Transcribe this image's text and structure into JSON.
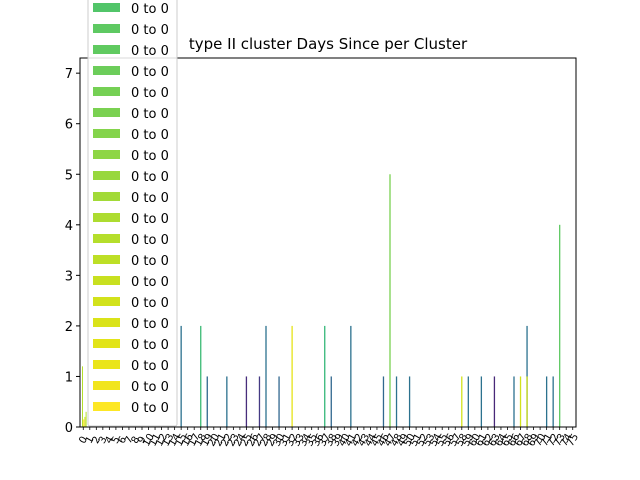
{
  "chart_data": {
    "type": "bar",
    "title": "type II cluster Days Since per Cluster",
    "xlabel": "",
    "ylabel": "",
    "ylim": [
      0,
      7.3
    ],
    "yticks": [
      0,
      1,
      2,
      3,
      4,
      5,
      6,
      7
    ],
    "categories": [
      "0",
      "1",
      "2",
      "3",
      "4",
      "5",
      "6",
      "7",
      "8",
      "9",
      "10",
      "11",
      "12",
      "13",
      "14",
      "15",
      "16",
      "17",
      "18",
      "19",
      "20",
      "21",
      "22",
      "23",
      "24",
      "25",
      "26",
      "27",
      "28",
      "29",
      "30",
      "31",
      "32",
      "33",
      "34",
      "35",
      "36",
      "37",
      "38",
      "39",
      "40",
      "41",
      "42",
      "43",
      "44",
      "45",
      "46",
      "47",
      "48",
      "49",
      "50",
      "51",
      "52",
      "53",
      "54",
      "55",
      "56",
      "57",
      "58",
      "59",
      "60",
      "61",
      "62",
      "63",
      "64",
      "65",
      "66",
      "67",
      "68",
      "69",
      "70",
      "71",
      "72",
      "73",
      "74",
      "75"
    ],
    "bars": [
      {
        "category": "15",
        "value": 2,
        "color": "#2c728e"
      },
      {
        "category": "18",
        "value": 2,
        "color": "#3bbb75"
      },
      {
        "category": "19",
        "value": 1,
        "color": "#31688e"
      },
      {
        "category": "22",
        "value": 1,
        "color": "#2c728e"
      },
      {
        "category": "25",
        "value": 1,
        "color": "#472d7b"
      },
      {
        "category": "27",
        "value": 1,
        "color": "#443a83"
      },
      {
        "category": "28",
        "value": 2,
        "color": "#2c728e"
      },
      {
        "category": "30",
        "value": 1,
        "color": "#31688e"
      },
      {
        "category": "32",
        "value": 2,
        "color": "#e5e419"
      },
      {
        "category": "37",
        "value": 2,
        "color": "#35b779"
      },
      {
        "category": "38",
        "value": 1,
        "color": "#31688e"
      },
      {
        "category": "41",
        "value": 2,
        "color": "#2c728e"
      },
      {
        "category": "46",
        "value": 1,
        "color": "#31688e"
      },
      {
        "category": "47",
        "value": 5,
        "color": "#7ad151"
      },
      {
        "category": "48",
        "value": 1,
        "color": "#2c728e"
      },
      {
        "category": "50",
        "value": 1,
        "color": "#2c728e"
      },
      {
        "category": "58",
        "value": 1,
        "color": "#d2e21b"
      },
      {
        "category": "59",
        "value": 1,
        "color": "#2c728e"
      },
      {
        "category": "61",
        "value": 1,
        "color": "#2c728e"
      },
      {
        "category": "63",
        "value": 1,
        "color": "#482878"
      },
      {
        "category": "66",
        "value": 1,
        "color": "#2c728e"
      },
      {
        "category": "67",
        "value": 1,
        "color": "#d2e21b"
      },
      {
        "category": "68",
        "value": 2,
        "color": "#2c728e"
      },
      {
        "category": "68",
        "value": 1,
        "color": "#d2e21b"
      },
      {
        "category": "71",
        "value": 1,
        "color": "#2c728e"
      },
      {
        "category": "72",
        "value": 1,
        "color": "#2c728e"
      },
      {
        "category": "73",
        "value": 4,
        "color": "#5ec962"
      }
    ],
    "left_stubs": [
      {
        "value": 1.2,
        "color": "#b5de2b"
      },
      {
        "value": 0.15,
        "color": "#fde725"
      },
      {
        "value": 0.2,
        "color": "#d2e21b"
      },
      {
        "value": 0.3,
        "color": "#b5de2b"
      }
    ],
    "legend": {
      "placement": "top-left",
      "entries": [
        {
          "label": "0 to 0",
          "color": "#52c569"
        },
        {
          "label": "0 to 0",
          "color": "#5ec962"
        },
        {
          "label": "0 to 0",
          "color": "#60ca60"
        },
        {
          "label": "0 to 0",
          "color": "#6ccd5a"
        },
        {
          "label": "0 to 0",
          "color": "#75d054"
        },
        {
          "label": "0 to 0",
          "color": "#7ad151"
        },
        {
          "label": "0 to 0",
          "color": "#84d44b"
        },
        {
          "label": "0 to 0",
          "color": "#8ed645"
        },
        {
          "label": "0 to 0",
          "color": "#98d83e"
        },
        {
          "label": "0 to 0",
          "color": "#a2da37"
        },
        {
          "label": "0 to 0",
          "color": "#addc30"
        },
        {
          "label": "0 to 0",
          "color": "#b5de2b"
        },
        {
          "label": "0 to 0",
          "color": "#bddf26"
        },
        {
          "label": "0 to 0",
          "color": "#c8e020"
        },
        {
          "label": "0 to 0",
          "color": "#d2e21b"
        },
        {
          "label": "0 to 0",
          "color": "#dae319"
        },
        {
          "label": "0 to 0",
          "color": "#e2e418"
        },
        {
          "label": "0 to 0",
          "color": "#eae51a"
        },
        {
          "label": "0 to 0",
          "color": "#f1e51d"
        },
        {
          "label": "0 to 0",
          "color": "#fde725"
        }
      ]
    }
  }
}
